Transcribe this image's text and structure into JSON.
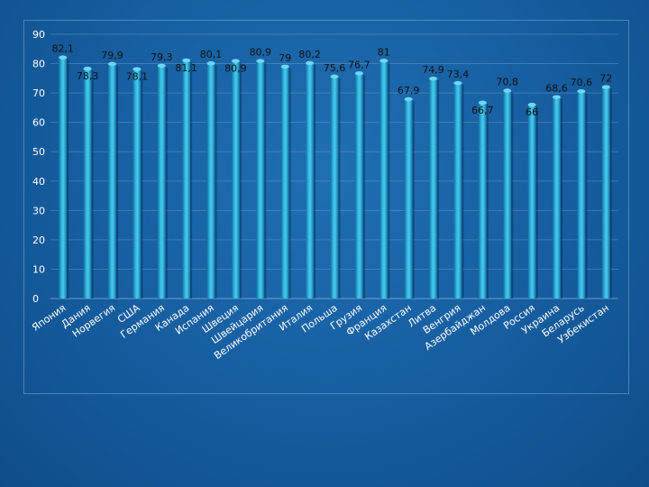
{
  "chart_data": {
    "type": "bar",
    "title": "",
    "xlabel": "",
    "ylabel": "",
    "ylim": [
      0,
      90
    ],
    "yticks": [
      0,
      10,
      20,
      30,
      40,
      50,
      60,
      70,
      80,
      90
    ],
    "grid": true,
    "categories": [
      "Япония",
      "Дания",
      "Норвегия",
      "США",
      "Германия",
      "Канада",
      "Испания",
      "Швеция",
      "Швейцария",
      "Великобритания",
      "Италия",
      "Польша",
      "Грузия",
      "Франция",
      "Казахстан",
      "Литва",
      "Венгрия",
      "Азербайджан",
      "Молдова",
      "Россия",
      "Украина",
      "Беларусь",
      "Узбекистан"
    ],
    "values": [
      82.1,
      78.3,
      79.9,
      78.1,
      79.3,
      81.1,
      80.1,
      80.9,
      80.9,
      79,
      80.2,
      75.6,
      76.7,
      81,
      67.9,
      74.9,
      73.4,
      66.7,
      70.8,
      66,
      68.6,
      70.6,
      72
    ],
    "data_labels": [
      "82,1",
      "78,3",
      "79,9",
      "78,1",
      "79,3",
      "81,1",
      "80,1",
      "80,9",
      "80,9",
      "79",
      "80,2",
      "75,6",
      "76,7",
      "81",
      "67,9",
      "74,9",
      "73,4",
      "66,7",
      "70,8",
      "66",
      "68,6",
      "70,6",
      "72"
    ],
    "colors": {
      "bar": "#2aa8d8",
      "bar_light": "#6fd6f4",
      "bar_dark": "#0f6f9c",
      "label": "#111111",
      "axis_text": "#ffffff"
    }
  }
}
